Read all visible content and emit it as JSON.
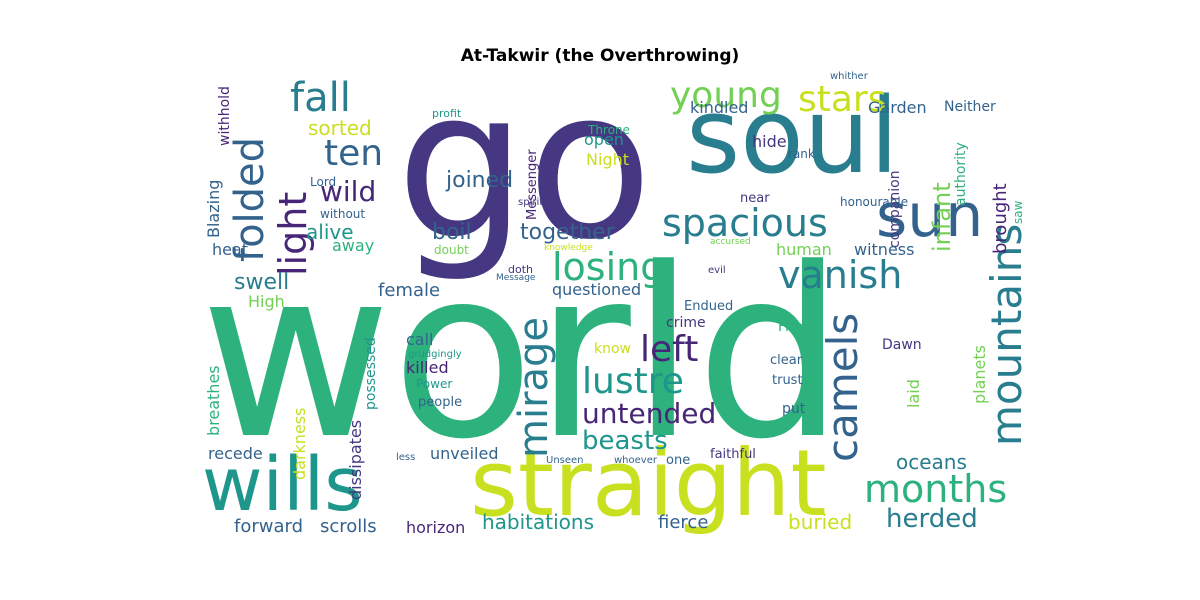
{
  "title": "At-Takwir (the Overthrowing)",
  "palette": {
    "dark_purple": "#482677",
    "indigo": "#453781",
    "blue": "#33638d",
    "teal": "#287d8e",
    "sea": "#1f968b",
    "green": "#2db27d",
    "lime": "#73d055",
    "yellow": "#c8e020",
    "deep": "#440154"
  },
  "words": {
    "world": "world",
    "go": "go",
    "soul": "soul",
    "straight": "straight",
    "wills": "wills",
    "sun": "sun",
    "mountains": "mountains",
    "spacious": "spacious",
    "vanish": "vanish",
    "camels": "camels",
    "months": "months",
    "losing": "losing",
    "mirage": "mirage",
    "lustre": "lustre",
    "left": "left",
    "untended": "untended",
    "folded": "folded",
    "light": "light",
    "fall": "fall",
    "ten": "ten",
    "young": "young",
    "stars": "stars",
    "wild": "wild",
    "beasts": "beasts",
    "herded": "herded",
    "oceans": "oceans",
    "habitations": "habitations",
    "swell": "swell",
    "joined": "joined",
    "boil": "boil",
    "together": "together",
    "sorted": "sorted",
    "alive": "alive",
    "infant": "infant",
    "kindled": "kindled",
    "garden": "Garden",
    "neither": "Neither",
    "brought": "brought",
    "hide": "hide",
    "human": "human",
    "witness": "witness",
    "female": "female",
    "questioned": "questioned",
    "buried": "buried",
    "fierce": "fierce",
    "scrolls": "scrolls",
    "forward": "forward",
    "horizon": "horizon",
    "unveiled": "unveiled",
    "recede": "recede",
    "darkness": "darkness",
    "dissipates": "dissipates",
    "breathes": "breathes",
    "possessed": "possessed",
    "heat": "heat",
    "blazing": "Blazing",
    "high": "High",
    "away": "away",
    "without": "without",
    "lord": "Lord",
    "withhold": "withhold",
    "profit": "profit",
    "messenger": "Messenger",
    "throne": "Throne",
    "open": "open",
    "night": "Night",
    "spirit": "spirit",
    "doubt": "doubt",
    "knowledge": "knowledge",
    "doth": "doth",
    "message": "Message",
    "call": "call",
    "killed": "killed",
    "grudgingly": "grudgingly",
    "power": "Power",
    "people": "people",
    "know": "know",
    "crime": "crime",
    "endued": "Endued",
    "fire": "Fire",
    "dawn": "Dawn",
    "clear": "clear",
    "trust": "trust",
    "put": "put",
    "laid": "laid",
    "planets": "planets",
    "near": "near",
    "rank": "rank",
    "companion": "companion",
    "authority": "authority",
    "honourable": "honourable",
    "saw": "saw",
    "whither": "whither",
    "accursed": "accursed",
    "evil": "evil",
    "faithful": "faithful",
    "one": "one",
    "whoever": "whoever",
    "unseen": "Unseen",
    "less": "less"
  }
}
